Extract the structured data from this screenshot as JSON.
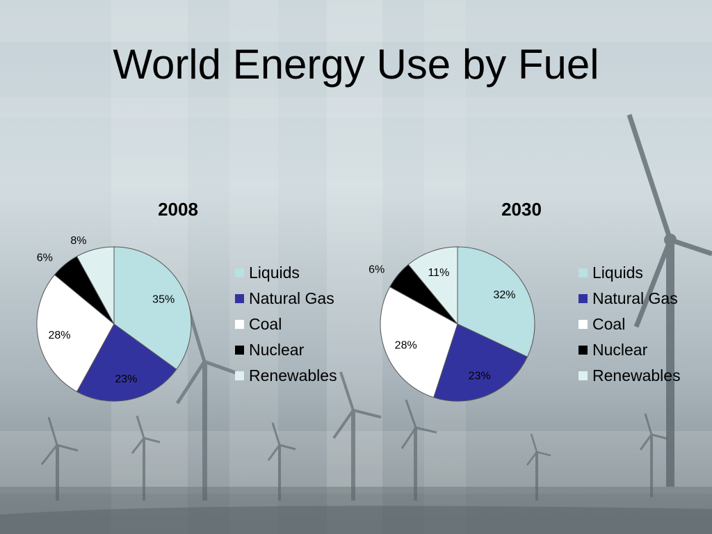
{
  "slide": {
    "title": "World Energy Use by Fuel"
  },
  "colors": {
    "Liquids": "#b9e0e2",
    "Natural Gas": "#3333a0",
    "Coal": "#ffffff",
    "Nuclear": "#000000",
    "Renewables": "#dff0f0"
  },
  "chart_data": [
    {
      "type": "pie",
      "title": "2008",
      "categories": [
        "Liquids",
        "Natural Gas",
        "Coal",
        "Nuclear",
        "Renewables"
      ],
      "values": [
        35,
        23,
        28,
        6,
        8
      ],
      "labels": [
        "35%",
        "23%",
        "28%",
        "6%",
        "8%"
      ],
      "legend_position": "right"
    },
    {
      "type": "pie",
      "title": "2030",
      "categories": [
        "Liquids",
        "Natural Gas",
        "Coal",
        "Nuclear",
        "Renewables"
      ],
      "values": [
        32,
        23,
        28,
        6,
        11
      ],
      "labels": [
        "32%",
        "23%",
        "28%",
        "6%",
        "11%"
      ],
      "legend_position": "right"
    }
  ]
}
